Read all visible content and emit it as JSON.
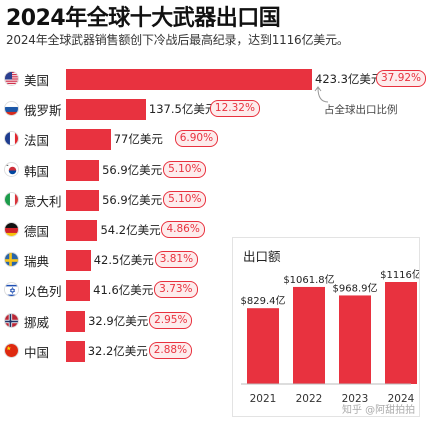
{
  "title": "2024年全球十大武器出口国",
  "subtitle": "2024年全球武器销售额创下冷战后最高纪录，达到1116亿美元。",
  "annotation": "占全球出口比例",
  "watermark": "知乎 @阿甜拍拍",
  "colors": {
    "bar": "#e8323f",
    "badge_border": "#e8323f",
    "badge_bg": "#fdecec"
  },
  "chart_data": [
    {
      "type": "bar",
      "orientation": "horizontal",
      "title": "2024年全球十大武器出口国",
      "categories": [
        "美国",
        "俄罗斯",
        "法国",
        "韩国",
        "意大利",
        "德国",
        "瑞典",
        "以色列",
        "挪威",
        "中国"
      ],
      "flags": [
        "us-flag-icon",
        "russia-flag-icon",
        "france-flag-icon",
        "korea-flag-icon",
        "italy-flag-icon",
        "germany-flag-icon",
        "sweden-flag-icon",
        "israel-flag-icon",
        "norway-flag-icon",
        "china-flag-icon"
      ],
      "values": [
        423.3,
        137.5,
        77,
        56.9,
        56.9,
        54.2,
        42.5,
        41.6,
        32.9,
        32.2
      ],
      "value_labels": [
        "423.3亿美元",
        "137.5亿美元",
        "77亿美元",
        "56.9亿美元",
        "56.9亿美元",
        "54.2亿美元",
        "42.5亿美元",
        "41.6亿美元",
        "32.9亿美元",
        "32.2亿美元"
      ],
      "shares": [
        "37.92%",
        "12.32%",
        "6.90%",
        "5.10%",
        "5.10%",
        "4.86%",
        "3.81%",
        "3.73%",
        "2.95%",
        "2.88%"
      ],
      "unit": "亿美元"
    },
    {
      "type": "bar",
      "title": "出口额",
      "categories": [
        "2021",
        "2022",
        "2023",
        "2024"
      ],
      "values": [
        829.4,
        1061.8,
        968.9,
        1116
      ],
      "value_labels": [
        "$829.4亿",
        "$1061.8亿",
        "$968.9亿",
        "$1116亿"
      ],
      "ylim": [
        0,
        1116
      ]
    }
  ]
}
